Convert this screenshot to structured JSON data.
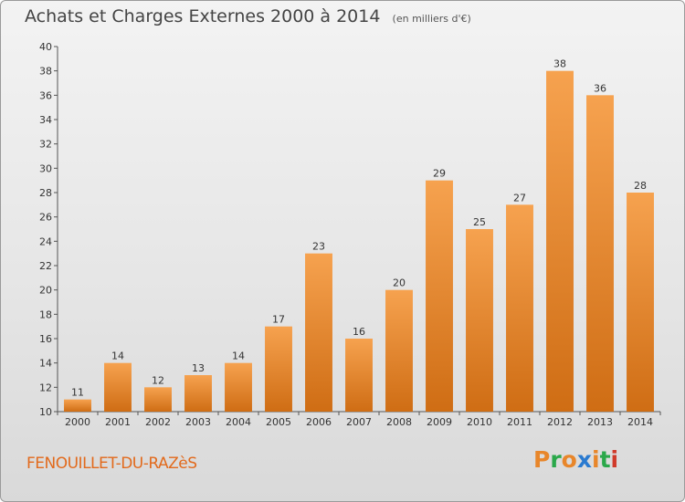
{
  "header": {
    "title": "Achats et Charges Externes 2000 à 2014",
    "subtitle": "(en milliers d'€)"
  },
  "footer": {
    "place": "FENOUILLET-DU-RAZèS",
    "logo_text": "Proxiti"
  },
  "colors": {
    "bar_top": "#f6a24f",
    "bar_bottom": "#cf6d14",
    "place_text": "#e26a1c",
    "logo_letters": [
      "#e8862a",
      "#2aa84a",
      "#e8862a",
      "#2a7ad0",
      "#e8862a",
      "#2aa84a",
      "#d03a2a"
    ]
  },
  "chart_data": {
    "type": "bar",
    "categories": [
      "2000",
      "2001",
      "2002",
      "2003",
      "2004",
      "2005",
      "2006",
      "2007",
      "2008",
      "2009",
      "2010",
      "2011",
      "2012",
      "2013",
      "2014"
    ],
    "values": [
      11,
      14,
      12,
      13,
      14,
      17,
      23,
      16,
      20,
      29,
      25,
      27,
      38,
      36,
      28
    ],
    "title": "Achats et Charges Externes 2000 à 2014",
    "subtitle": "(en milliers d'€)",
    "xlabel": "",
    "ylabel": "",
    "ylim": [
      10,
      40
    ],
    "yticks": [
      10,
      12,
      14,
      16,
      18,
      20,
      22,
      24,
      26,
      28,
      30,
      32,
      34,
      36,
      38,
      40
    ],
    "grid": false,
    "data_labels": true
  }
}
